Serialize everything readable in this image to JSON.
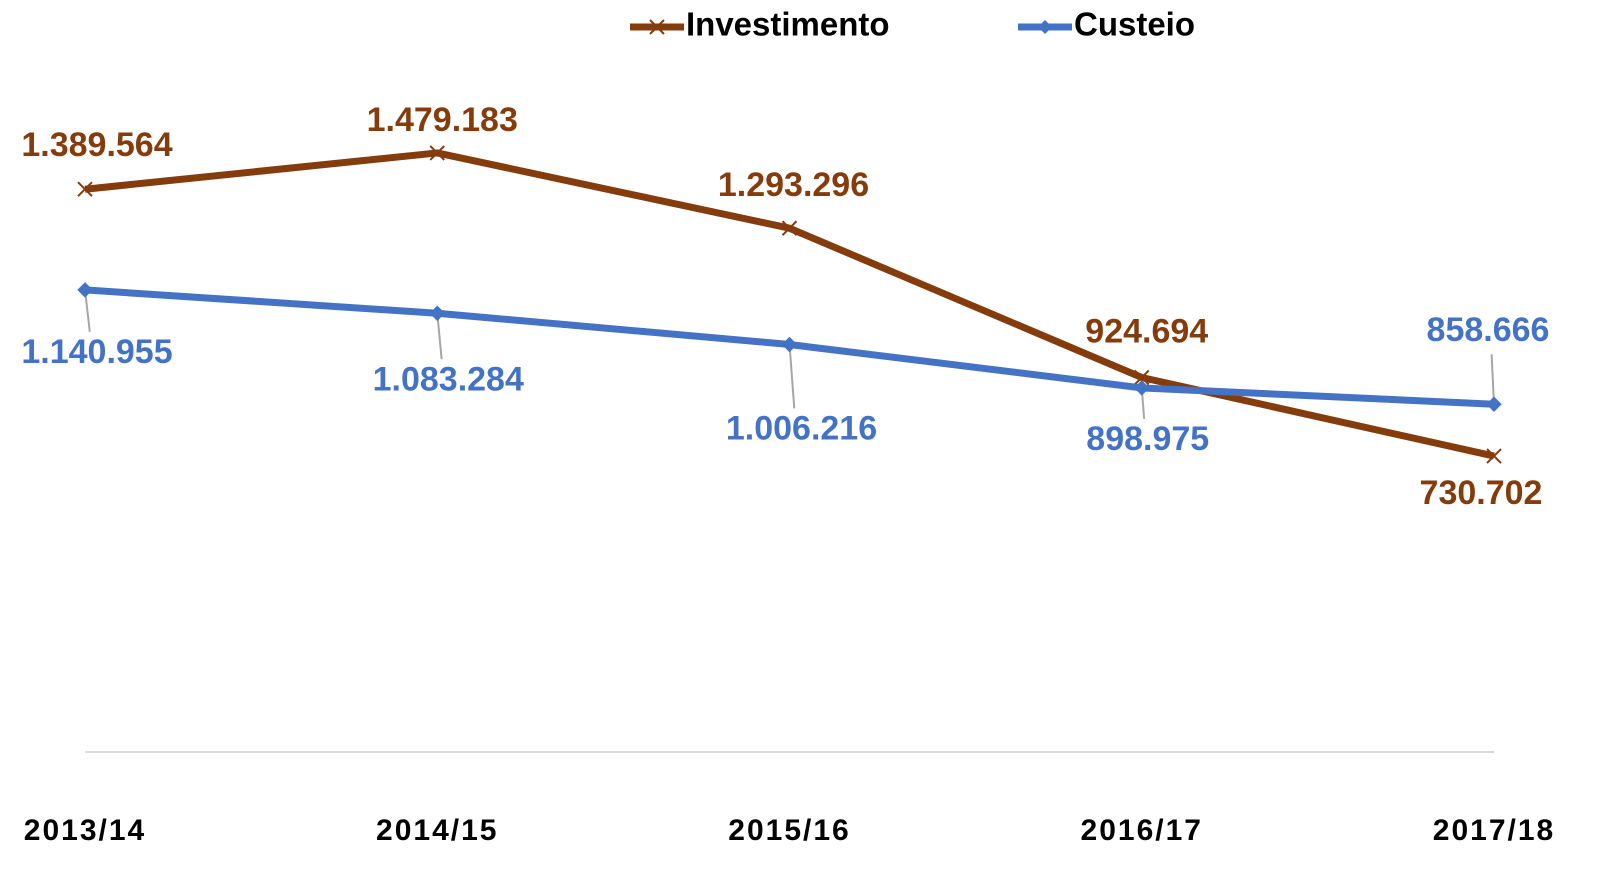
{
  "chart_data": {
    "type": "line",
    "categories": [
      "2013/14",
      "2014/15",
      "2015/16",
      "2016/17",
      "2017/18"
    ],
    "series": [
      {
        "name": "Investimento",
        "color": "#843C0C",
        "marker": "x",
        "values": [
          1389564,
          1479183,
          1293296,
          924694,
          730702
        ],
        "value_labels": [
          "1.389.564",
          "1.479.183",
          "1.293.296",
          "924.694",
          "730.702"
        ]
      },
      {
        "name": "Custeio",
        "color": "#4472C4",
        "marker": "diamond",
        "values": [
          1140955,
          1083284,
          1006216,
          898975,
          858666
        ],
        "value_labels": [
          "1.140.955",
          "1.083.284",
          "1.006.216",
          "898.975",
          "858.666"
        ]
      }
    ],
    "ylim": [
      0,
      1600000
    ],
    "legend": "top"
  }
}
